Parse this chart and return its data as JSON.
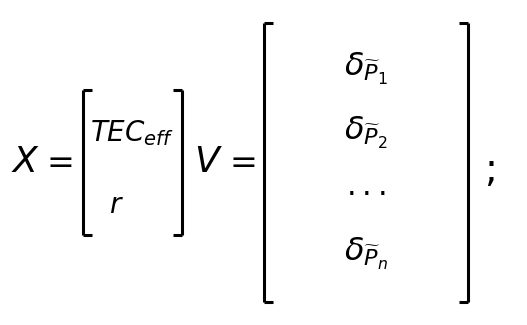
{
  "bg_color": "#ffffff",
  "text_color": "#000000",
  "figsize": [
    5.27,
    3.25
  ],
  "dpi": 100,
  "font_size_main": 22,
  "font_size_matrix": 20
}
